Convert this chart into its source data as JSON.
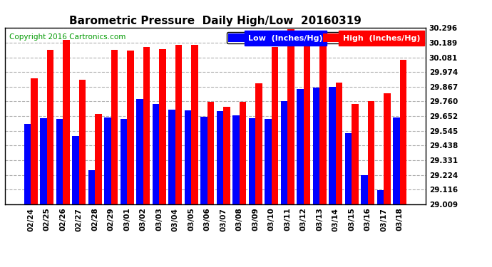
{
  "title": "Barometric Pressure  Daily High/Low  20160319",
  "copyright": "Copyright 2016 Cartronics.com",
  "legend_low": "Low  (Inches/Hg)",
  "legend_high": "High  (Inches/Hg)",
  "categories": [
    "02/24",
    "02/25",
    "02/26",
    "02/27",
    "02/28",
    "02/29",
    "03/01",
    "03/02",
    "03/03",
    "03/04",
    "03/05",
    "03/06",
    "03/07",
    "03/08",
    "03/09",
    "03/10",
    "03/11",
    "03/12",
    "03/13",
    "03/14",
    "03/15",
    "03/16",
    "03/17",
    "03/18"
  ],
  "low_values": [
    29.595,
    29.64,
    29.63,
    29.51,
    29.26,
    29.645,
    29.63,
    29.78,
    29.74,
    29.7,
    29.695,
    29.65,
    29.69,
    29.66,
    29.64,
    29.63,
    29.76,
    29.85,
    29.86,
    29.865,
    29.53,
    29.22,
    29.11,
    29.645
  ],
  "high_values": [
    29.93,
    30.135,
    30.21,
    29.92,
    29.67,
    30.135,
    30.13,
    30.16,
    30.14,
    30.175,
    30.175,
    29.755,
    29.72,
    29.755,
    29.89,
    30.155,
    30.29,
    30.175,
    30.175,
    29.895,
    29.74,
    29.76,
    29.82,
    30.065
  ],
  "ymin": 29.009,
  "ymax": 30.296,
  "yticks": [
    29.009,
    29.116,
    29.224,
    29.331,
    29.438,
    29.545,
    29.652,
    29.76,
    29.867,
    29.974,
    30.081,
    30.189,
    30.296
  ],
  "low_color": "#0000ff",
  "high_color": "#ff0000",
  "background_color": "#ffffff",
  "grid_color": "#b0b0b0",
  "bar_width": 0.42,
  "title_fontsize": 11,
  "tick_fontsize": 7.5,
  "copyright_fontsize": 7.5,
  "legend_fontsize": 8
}
